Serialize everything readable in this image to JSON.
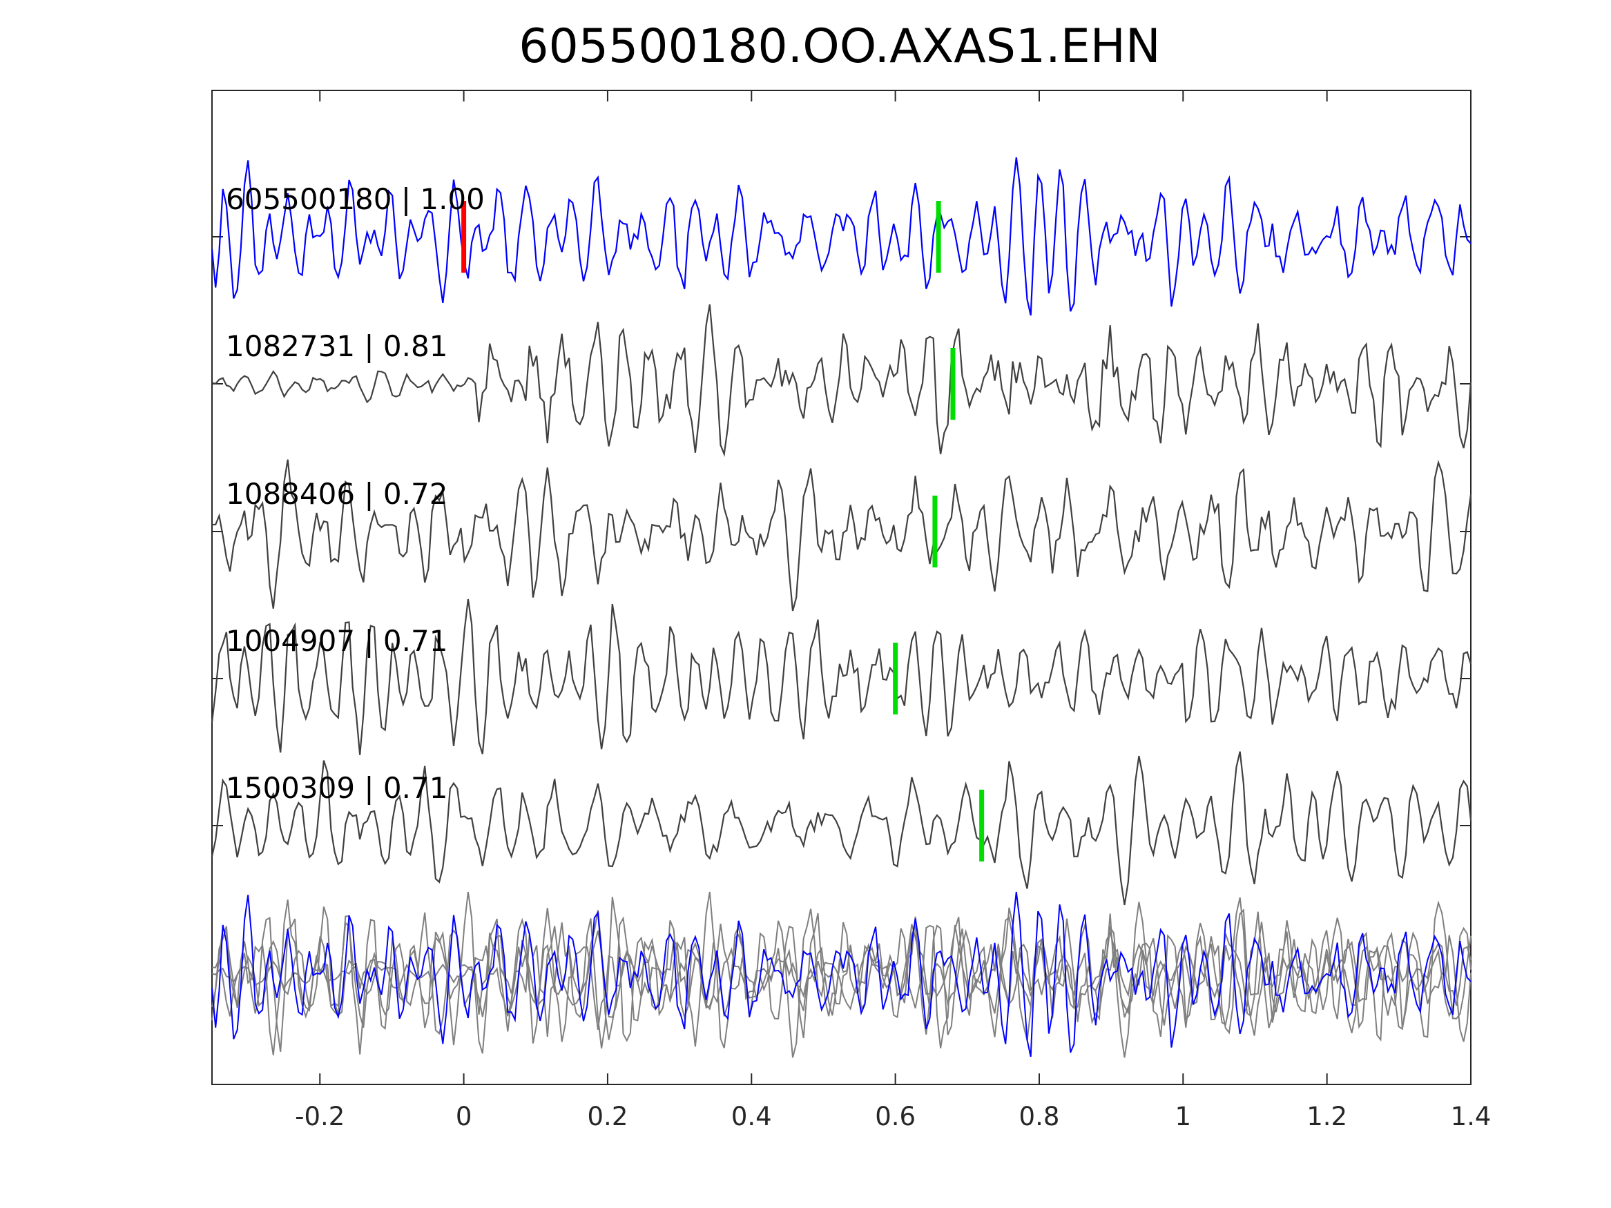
{
  "chart_data": {
    "type": "line",
    "title": "605500180.OO.AXAS1.EHN",
    "xlabel": "",
    "ylabel": "",
    "xlim": [
      -0.35,
      1.4
    ],
    "xticks": [
      -0.2,
      0,
      0.2,
      0.4,
      0.6,
      0.8,
      1,
      1.2,
      1.4
    ],
    "xtick_labels": [
      "-0.2",
      "0",
      "0.2",
      "0.4",
      "0.6",
      "0.8",
      "1",
      "1.2",
      "1.4"
    ],
    "grid": false,
    "legend": "none",
    "series": [
      {
        "name": "605500180 | 1.00",
        "color": "#0000ff",
        "pick_time": 0.66,
        "reference_pick_time": 0.0,
        "reference_pick_color": "#ff0000"
      },
      {
        "name": "1082731 | 0.81",
        "color": "#404040",
        "pick_time": 0.68
      },
      {
        "name": "1088406 | 0.72",
        "color": "#404040",
        "pick_time": 0.655
      },
      {
        "name": "1004907 | 0.71",
        "color": "#404040",
        "pick_time": 0.6
      },
      {
        "name": "1500309 | 0.71",
        "color": "#404040",
        "pick_time": 0.72
      }
    ],
    "pick_color": "#00dd00",
    "overlay": {
      "description_colors": {
        "primary": "#0000ff",
        "others": "#7f7f7f"
      }
    }
  }
}
